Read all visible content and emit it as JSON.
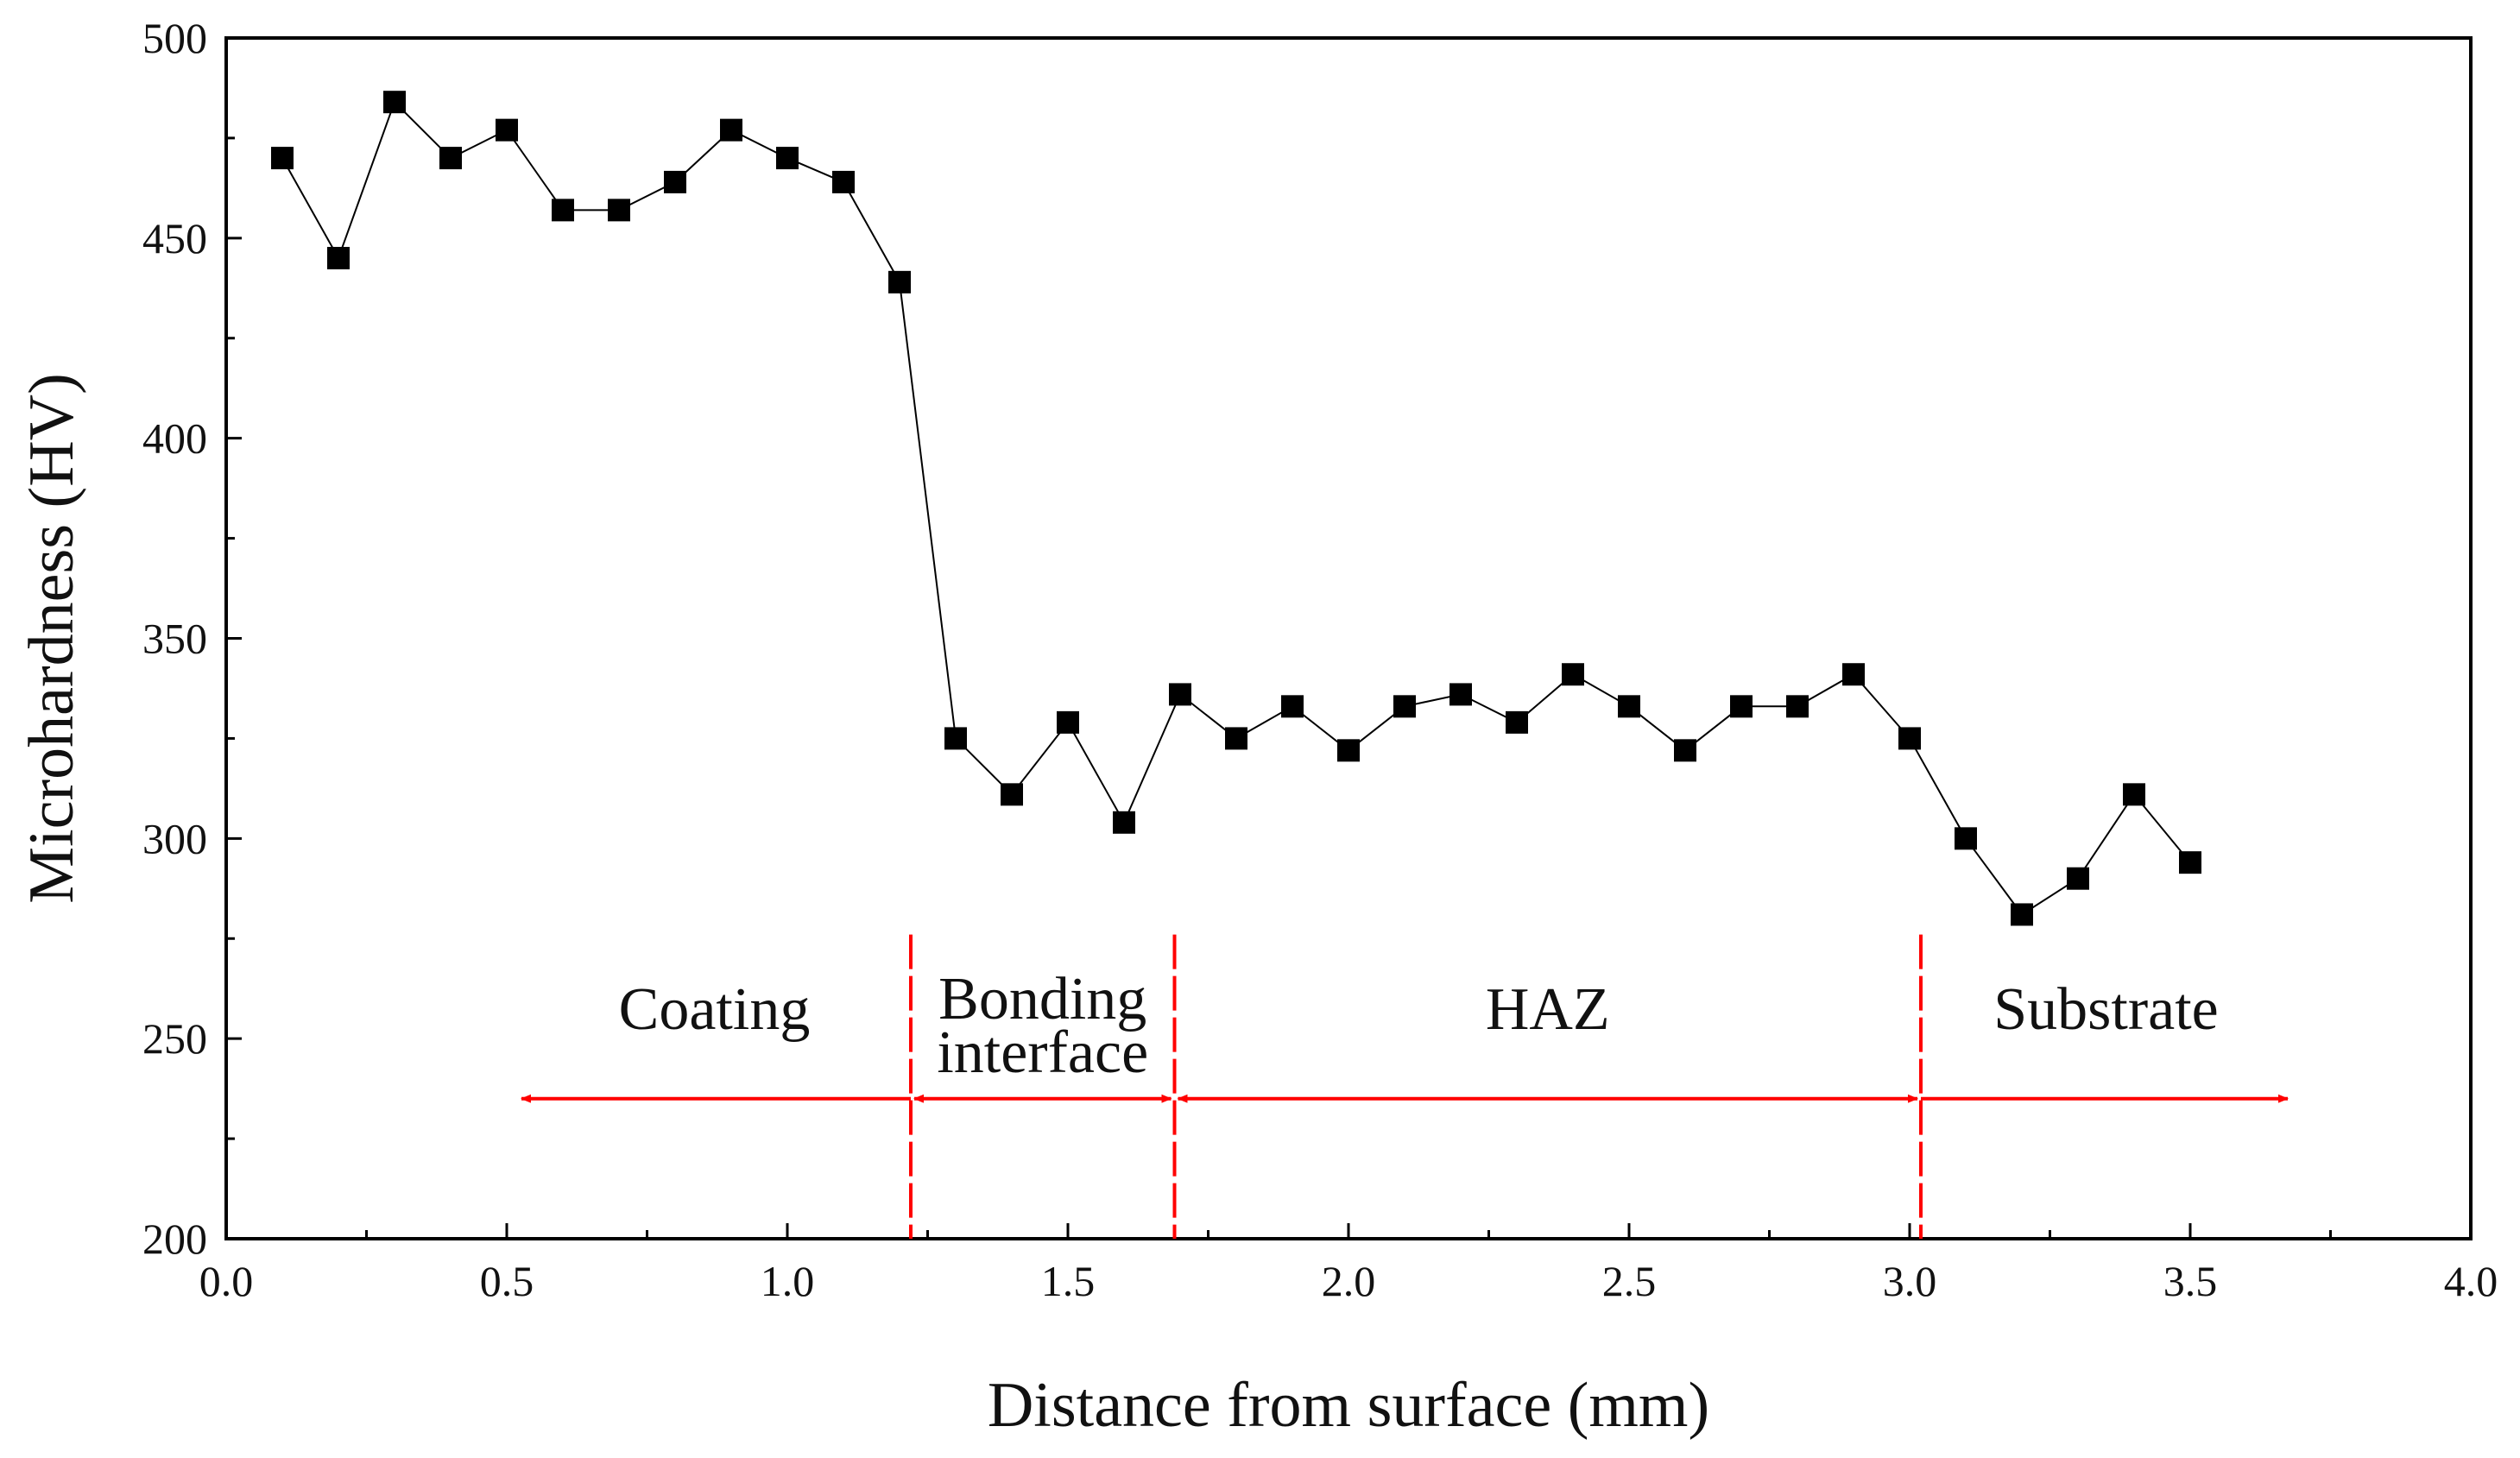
{
  "chart_data": {
    "type": "line",
    "title": "",
    "xlabel": "Distance from surface (mm)",
    "ylabel": "Microhardness (HV)",
    "xlim": [
      0.0,
      4.0
    ],
    "ylim": [
      200,
      500
    ],
    "xticks": [
      0.0,
      0.5,
      1.0,
      1.5,
      2.0,
      2.5,
      3.0,
      3.5,
      4.0
    ],
    "xtick_labels": [
      "0.0",
      "0.5",
      "1.0",
      "1.5",
      "2.0",
      "2.5",
      "3.0",
      "3.5",
      "4.0"
    ],
    "yticks": [
      200,
      250,
      300,
      350,
      400,
      450,
      500
    ],
    "ytick_labels": [
      "200",
      "250",
      "300",
      "350",
      "400",
      "450",
      "500"
    ],
    "grid": false,
    "series": [
      {
        "name": "Microhardness",
        "marker": "square",
        "color": "#000000",
        "x": [
          0.1,
          0.2,
          0.3,
          0.4,
          0.5,
          0.6,
          0.7,
          0.8,
          0.9,
          1.0,
          1.1,
          1.2,
          1.3,
          1.4,
          1.5,
          1.6,
          1.7,
          1.8,
          1.9,
          2.0,
          2.1,
          2.2,
          2.3,
          2.4,
          2.5,
          2.6,
          2.7,
          2.8,
          2.9,
          3.0,
          3.1,
          3.2,
          3.3,
          3.4,
          3.5
        ],
        "values": [
          470,
          445,
          484,
          470,
          477,
          457,
          457,
          464,
          477,
          470,
          464,
          439,
          325,
          311,
          329,
          304,
          336,
          325,
          333,
          322,
          333,
          336,
          329,
          341,
          333,
          322,
          333,
          333,
          341,
          325,
          300,
          281,
          290,
          311,
          294
        ]
      }
    ],
    "boundaries": [
      1.22,
      1.69,
      3.02
    ],
    "boundary_color": "#ff0000",
    "regions": [
      {
        "label_lines": [
          "Coating"
        ],
        "from": 0.52,
        "to": 1.22,
        "arrow_left": true,
        "arrow_right": false
      },
      {
        "label_lines": [
          "Bonding",
          "interface"
        ],
        "from": 1.22,
        "to": 1.69,
        "arrow_left": true,
        "arrow_right": true
      },
      {
        "label_lines": [
          "HAZ"
        ],
        "from": 1.69,
        "to": 3.02,
        "arrow_left": true,
        "arrow_right": true
      },
      {
        "label_lines": [
          "Substrate"
        ],
        "from": 3.02,
        "to": 3.68,
        "arrow_left": false,
        "arrow_right": true
      }
    ],
    "arrow_y": 235
  }
}
